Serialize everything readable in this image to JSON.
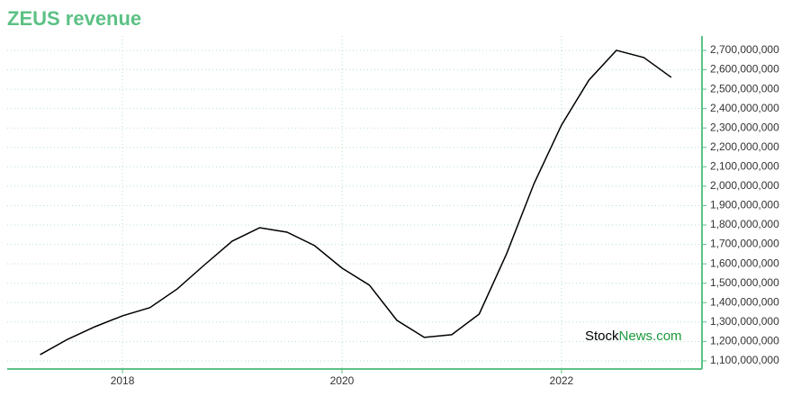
{
  "chart_data": {
    "type": "line",
    "title": "ZEUS revenue",
    "watermark": {
      "prefix": "Stock",
      "suffix": "News.com"
    },
    "x": [
      2017.25,
      2017.5,
      2017.75,
      2018.0,
      2018.25,
      2018.5,
      2018.75,
      2019.0,
      2019.25,
      2019.5,
      2019.75,
      2020.0,
      2020.25,
      2020.5,
      2020.75,
      2021.0,
      2021.25,
      2021.5,
      2021.75,
      2022.0,
      2022.25,
      2022.5,
      2022.75,
      2023.0
    ],
    "values": [
      1132000000,
      1211000000,
      1276000000,
      1332000000,
      1374000000,
      1471000000,
      1596000000,
      1717000000,
      1786000000,
      1763000000,
      1694000000,
      1578000000,
      1490000000,
      1309000000,
      1221000000,
      1235000000,
      1341000000,
      1652000000,
      2014000000,
      2315000000,
      2547000000,
      2700000000,
      2663000000,
      2561000000
    ],
    "color": "#000000",
    "xlim": [
      2016.95,
      2023.28
    ],
    "xticks": [
      2018,
      2020,
      2022
    ],
    "ylim": [
      1058000000,
      2774000000
    ],
    "yticks": [
      {
        "value": 1100000000,
        "label": "1,100,000,000"
      },
      {
        "value": 1200000000,
        "label": "1,200,000,000"
      },
      {
        "value": 1300000000,
        "label": "1,300,000,000"
      },
      {
        "value": 1400000000,
        "label": "1,400,000,000"
      },
      {
        "value": 1500000000,
        "label": "1,500,000,000"
      },
      {
        "value": 1600000000,
        "label": "1,600,000,000"
      },
      {
        "value": 1700000000,
        "label": "1,700,000,000"
      },
      {
        "value": 1800000000,
        "label": "1,800,000,000"
      },
      {
        "value": 1900000000,
        "label": "1,900,000,000"
      },
      {
        "value": 2000000000,
        "label": "2,000,000,000"
      },
      {
        "value": 2100000000,
        "label": "2,100,000,000"
      },
      {
        "value": 2200000000,
        "label": "2,200,000,000"
      },
      {
        "value": 2300000000,
        "label": "2,300,000,000"
      },
      {
        "value": 2400000000,
        "label": "2,400,000,000"
      },
      {
        "value": 2500000000,
        "label": "2,500,000,000"
      },
      {
        "value": 2600000000,
        "label": "2,600,000,000"
      },
      {
        "value": 2700000000,
        "label": "2,700,000,000"
      }
    ],
    "grid": true
  }
}
